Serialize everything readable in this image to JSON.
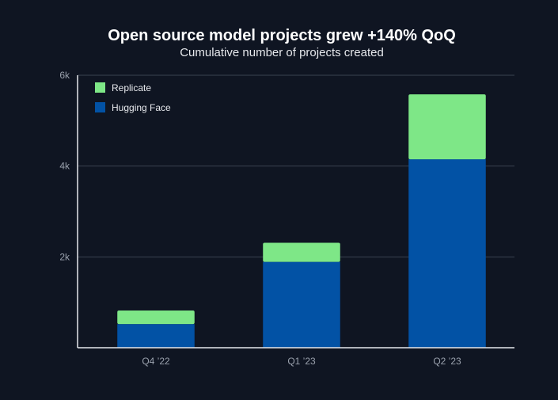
{
  "chart_data": {
    "type": "bar",
    "stacked": true,
    "title": "Open source model projects grew +140% QoQ",
    "subtitle": "Cumulative number of projects created",
    "categories": [
      "Q4 ’22",
      "Q1 ’23",
      "Q2 ’23"
    ],
    "series": [
      {
        "name": "Hugging Face",
        "values": [
          520,
          1890,
          4150
        ],
        "color": "#0252a5"
      },
      {
        "name": "Replicate",
        "values": [
          300,
          420,
          1430
        ],
        "color": "#7ee787"
      }
    ],
    "ylim": [
      0,
      6000
    ],
    "yticks": [
      2000,
      4000,
      6000
    ],
    "ytick_labels": [
      "2k",
      "4k",
      "6k"
    ],
    "grid": true,
    "legend_position": "top-left"
  }
}
